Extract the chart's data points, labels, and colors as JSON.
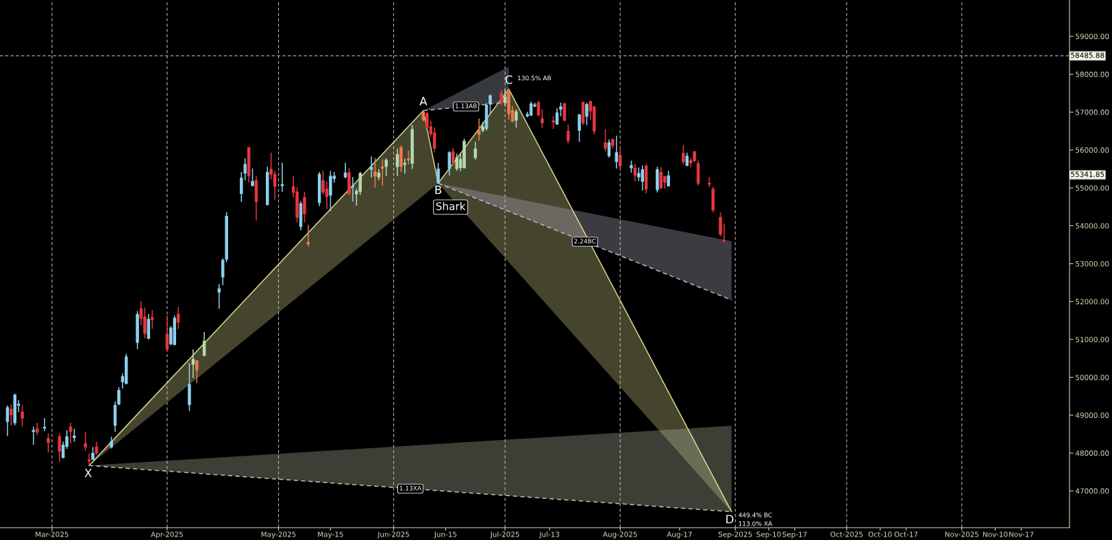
{
  "chart_data": {
    "type": "candlestick",
    "x": [
      "2025-02-17",
      "2025-02-18",
      "2025-02-19",
      "2025-02-20",
      "2025-02-21",
      "2025-02-24",
      "2025-02-25",
      "2025-02-27",
      "2025-02-28",
      "2025-03-03",
      "2025-03-04",
      "2025-03-05",
      "2025-03-06",
      "2025-03-07",
      "2025-03-10",
      "2025-03-11",
      "2025-03-12",
      "2025-03-13",
      "2025-03-17",
      "2025-03-18",
      "2025-03-19",
      "2025-03-20",
      "2025-03-21",
      "2025-03-24",
      "2025-03-25",
      "2025-03-26",
      "2025-03-27",
      "2025-03-28",
      "2025-04-01",
      "2025-04-02",
      "2025-04-03",
      "2025-04-04",
      "2025-04-07",
      "2025-04-08",
      "2025-04-09",
      "2025-04-11",
      "2025-04-15",
      "2025-04-16",
      "2025-04-17",
      "2025-04-21",
      "2025-04-22",
      "2025-04-23",
      "2025-04-24",
      "2025-04-25",
      "2025-04-28",
      "2025-04-29",
      "2025-04-30",
      "2025-05-02",
      "2025-05-05",
      "2025-05-06",
      "2025-05-07",
      "2025-05-08",
      "2025-05-09",
      "2025-05-12",
      "2025-05-13",
      "2025-05-14",
      "2025-05-15",
      "2025-05-16",
      "2025-05-19",
      "2025-05-20",
      "2025-05-21",
      "2025-05-22",
      "2025-05-23",
      "2025-05-26",
      "2025-05-27",
      "2025-05-28",
      "2025-05-29",
      "2025-05-30",
      "2025-06-02",
      "2025-06-03",
      "2025-06-04",
      "2025-06-05",
      "2025-06-06",
      "2025-06-09",
      "2025-06-10",
      "2025-06-11",
      "2025-06-12",
      "2025-06-13",
      "2025-06-16",
      "2025-06-17",
      "2025-06-18",
      "2025-06-19",
      "2025-06-20",
      "2025-06-23",
      "2025-06-24",
      "2025-06-25",
      "2025-06-26",
      "2025-06-27",
      "2025-06-30",
      "2025-07-01",
      "2025-07-02",
      "2025-07-03",
      "2025-07-04",
      "2025-07-07",
      "2025-07-08",
      "2025-07-09",
      "2025-07-10",
      "2025-07-11",
      "2025-07-14",
      "2025-07-15",
      "2025-07-16",
      "2025-07-17",
      "2025-07-18",
      "2025-07-21",
      "2025-07-22",
      "2025-07-23",
      "2025-07-24",
      "2025-07-25",
      "2025-07-28",
      "2025-07-29",
      "2025-07-30",
      "2025-07-31",
      "2025-08-01",
      "2025-08-04",
      "2025-08-05",
      "2025-08-06",
      "2025-08-07",
      "2025-08-08",
      "2025-08-11",
      "2025-08-12",
      "2025-08-13",
      "2025-08-14",
      "2025-08-18",
      "2025-08-19",
      "2025-08-20",
      "2025-08-21",
      "2025-08-22",
      "2025-08-25",
      "2025-08-26",
      "2025-08-28",
      "2025-08-29"
    ],
    "ohlc": [
      [
        48830,
        49260,
        48450,
        49200
      ],
      [
        49160,
        49280,
        48730,
        49010
      ],
      [
        48800,
        49570,
        48730,
        49530
      ],
      [
        49260,
        49400,
        49080,
        49290
      ],
      [
        49080,
        49260,
        48700,
        48920
      ],
      [
        48570,
        48700,
        48220,
        48600
      ],
      [
        48640,
        48800,
        48470,
        48550
      ],
      [
        48660,
        48920,
        48580,
        48680
      ],
      [
        48380,
        48520,
        48020,
        48280
      ],
      [
        48430,
        48520,
        47770,
        48050
      ],
      [
        47880,
        48300,
        47860,
        48210
      ],
      [
        48180,
        48600,
        48110,
        48430
      ],
      [
        48690,
        48800,
        48250,
        48570
      ],
      [
        48410,
        48640,
        48300,
        48450
      ],
      [
        48250,
        48550,
        48060,
        48160
      ],
      [
        47820,
        47990,
        47670,
        47790
      ],
      [
        47830,
        48160,
        47820,
        47990
      ],
      [
        48160,
        48290,
        47970,
        48000
      ],
      [
        48160,
        48430,
        48120,
        48300
      ],
      [
        48730,
        49360,
        48560,
        49260
      ],
      [
        49290,
        49740,
        49260,
        49650
      ],
      [
        49880,
        50100,
        49700,
        50020
      ],
      [
        49840,
        50620,
        49810,
        50540
      ],
      [
        50920,
        51750,
        50740,
        51660
      ],
      [
        51810,
        52010,
        51380,
        51560
      ],
      [
        51590,
        51840,
        51030,
        51160
      ],
      [
        51030,
        51670,
        51000,
        51530
      ],
      [
        51580,
        51780,
        51280,
        51520
      ],
      [
        51130,
        51630,
        50690,
        50750
      ],
      [
        50880,
        51350,
        50850,
        51300
      ],
      [
        50860,
        51630,
        50850,
        51560
      ],
      [
        51670,
        51860,
        51280,
        51460
      ],
      [
        49280,
        50380,
        49110,
        49810
      ],
      [
        50340,
        50740,
        49980,
        50470
      ],
      [
        50440,
        50440,
        49850,
        50190
      ],
      [
        50570,
        51190,
        50570,
        50950
      ],
      [
        52250,
        52460,
        51810,
        52340
      ],
      [
        52650,
        53140,
        52430,
        53090
      ],
      [
        53120,
        54360,
        53040,
        54250
      ],
      [
        54850,
        55420,
        54630,
        55260
      ],
      [
        55390,
        55780,
        55200,
        55620
      ],
      [
        56070,
        56070,
        55140,
        55320
      ],
      [
        55060,
        55510,
        55040,
        55170
      ],
      [
        55190,
        55310,
        54140,
        54640
      ],
      [
        54560,
        55560,
        54530,
        55410
      ],
      [
        55490,
        55930,
        55230,
        55360
      ],
      [
        55360,
        55450,
        54690,
        55040
      ],
      [
        55060,
        55670,
        54900,
        55090
      ],
      [
        55030,
        55320,
        54750,
        54880
      ],
      [
        54890,
        55010,
        54090,
        54220
      ],
      [
        53980,
        54650,
        53880,
        54580
      ],
      [
        54750,
        54900,
        54080,
        54320
      ],
      [
        53560,
        54020,
        53450,
        53520
      ],
      [
        54610,
        55420,
        54520,
        55360
      ],
      [
        55190,
        55450,
        54830,
        54890
      ],
      [
        54970,
        55170,
        54440,
        54770
      ],
      [
        54810,
        55450,
        54390,
        55310
      ],
      [
        55250,
        55420,
        55140,
        55310
      ],
      [
        55290,
        55670,
        55250,
        55390
      ],
      [
        55400,
        55520,
        54800,
        54840
      ],
      [
        55030,
        55290,
        54640,
        55050
      ],
      [
        54840,
        54980,
        54530,
        54910
      ],
      [
        54910,
        55420,
        54810,
        55380
      ],
      [
        55490,
        55830,
        55270,
        55540
      ],
      [
        55420,
        55790,
        55010,
        55310
      ],
      [
        55290,
        55490,
        55200,
        55390
      ],
      [
        55550,
        55750,
        55060,
        55520
      ],
      [
        55570,
        55780,
        55310,
        55730
      ],
      [
        55560,
        56040,
        55310,
        55880
      ],
      [
        56070,
        56120,
        55420,
        55570
      ],
      [
        55620,
        55770,
        55380,
        55650
      ],
      [
        55770,
        55980,
        55620,
        55740
      ],
      [
        55650,
        56660,
        55500,
        56540
      ],
      [
        57000,
        57040,
        56760,
        56800
      ],
      [
        56960,
        57000,
        56580,
        56600
      ],
      [
        56610,
        56770,
        56350,
        56430
      ],
      [
        56450,
        56590,
        55930,
        56050
      ],
      [
        55140,
        55660,
        55120,
        55500
      ],
      [
        55510,
        55970,
        55330,
        55930
      ],
      [
        55950,
        56050,
        55600,
        55670
      ],
      [
        55510,
        55900,
        55450,
        55800
      ],
      [
        55540,
        55910,
        55440,
        55750
      ],
      [
        55530,
        56300,
        55520,
        56230
      ],
      [
        55800,
        56210,
        55750,
        56030
      ],
      [
        56500,
        56830,
        56250,
        56410
      ],
      [
        56520,
        56740,
        56470,
        56610
      ],
      [
        56570,
        57240,
        56510,
        57180
      ],
      [
        57220,
        57470,
        56960,
        57430
      ],
      [
        57500,
        57590,
        57190,
        57260
      ],
      [
        57260,
        57610,
        57160,
        57400
      ],
      [
        57580,
        57610,
        56800,
        56960
      ],
      [
        57040,
        57160,
        56730,
        56760
      ],
      [
        56790,
        57070,
        56590,
        57010
      ],
      [
        56900,
        57010,
        56860,
        56940
      ],
      [
        56920,
        57280,
        56900,
        57220
      ],
      [
        57160,
        57250,
        57130,
        57190
      ],
      [
        57250,
        57300,
        56900,
        56920
      ],
      [
        56820,
        57070,
        56580,
        56720
      ],
      [
        56770,
        56890,
        56560,
        56740
      ],
      [
        56680,
        57100,
        56680,
        56980
      ],
      [
        57080,
        57250,
        56890,
        57140
      ],
      [
        57220,
        57250,
        56760,
        56780
      ],
      [
        56490,
        56670,
        56170,
        56250
      ],
      [
        56520,
        56950,
        56220,
        56930
      ],
      [
        57260,
        57280,
        56660,
        56720
      ],
      [
        56890,
        57250,
        56660,
        57200
      ],
      [
        57280,
        57300,
        56800,
        57030
      ],
      [
        57140,
        57160,
        56410,
        56500
      ],
      [
        56190,
        56550,
        55960,
        56050
      ],
      [
        55850,
        56280,
        55800,
        56190
      ],
      [
        56280,
        56300,
        56040,
        56120
      ],
      [
        55690,
        56380,
        55510,
        55930
      ],
      [
        55860,
        56080,
        55520,
        55580
      ],
      [
        55530,
        55720,
        55400,
        55590
      ],
      [
        55520,
        55630,
        55170,
        55330
      ],
      [
        55290,
        55540,
        55180,
        55380
      ],
      [
        55170,
        55590,
        54930,
        55480
      ],
      [
        55570,
        55630,
        54860,
        54970
      ],
      [
        54950,
        55560,
        54880,
        55480
      ],
      [
        55410,
        55540,
        54970,
        55000
      ],
      [
        55300,
        55300,
        54990,
        55150
      ],
      [
        55050,
        55450,
        55040,
        55320
      ],
      [
        55910,
        56130,
        55620,
        55690
      ],
      [
        55590,
        55930,
        55570,
        55840
      ],
      [
        55720,
        55790,
        55540,
        55660
      ],
      [
        55950,
        55980,
        55680,
        55720
      ],
      [
        55640,
        55720,
        55060,
        55120
      ],
      [
        55120,
        55280,
        55020,
        55100
      ],
      [
        54960,
        55030,
        54350,
        54420
      ],
      [
        54220,
        54350,
        53720,
        53780
      ],
      [
        53610,
        54060,
        53560,
        53600
      ]
    ],
    "colors": [
      "#8fd0ef",
      "#e8373f",
      "#8fd0ef",
      "#8fd0ef",
      "#e8373f",
      "#8fd0ef",
      "#e8373f",
      "#8fd0ef",
      "#e8373f",
      "#e8373f",
      "#8fd0ef",
      "#8fd0ef",
      "#e8373f",
      "#8fd0ef",
      "#e8373f",
      "#e8373f",
      "#8fd0ef",
      "#e8373f",
      "#8fd0ef",
      "#8fd0ef",
      "#8fd0ef",
      "#8fd0ef",
      "#8fd0ef",
      "#8fd0ef",
      "#e8373f",
      "#e8373f",
      "#8fd0ef",
      "#e8373f",
      "#e8373f",
      "#8fd0ef",
      "#8fd0ef",
      "#e8373f",
      "#8fd0ef",
      "#b4dcb0",
      "#f07a4a",
      "#b4dcb0",
      "#8fd0ef",
      "#8fd0ef",
      "#8fd0ef",
      "#8fd0ef",
      "#8fd0ef",
      "#e8373f",
      "#8fd0ef",
      "#e8373f",
      "#8fd0ef",
      "#e8373f",
      "#e8373f",
      "#8fd0ef",
      "#e8373f",
      "#e8373f",
      "#8fd0ef",
      "#e8373f",
      "#f07a4a",
      "#8fd0ef",
      "#e8373f",
      "#e8373f",
      "#8fd0ef",
      "#8fd0ef",
      "#8fd0ef",
      "#e8373f",
      "#8fd0ef",
      "#b4dcb0",
      "#b4dcb0",
      "#8fd0ef",
      "#f07a4a",
      "#b4dcb0",
      "#f07a4a",
      "#b4dcb0",
      "#b4dcb0",
      "#f07a4a",
      "#b4dcb0",
      "#f07a4a",
      "#b4dcb0",
      "#f07a4a",
      "#e8373f",
      "#e8373f",
      "#e8373f",
      "#8fd0ef",
      "#8fd0ef",
      "#e8373f",
      "#b4dcb0",
      "#b4dcb0",
      "#b4dcb0",
      "#b4dcb0",
      "#f07a4a",
      "#b4dcb0",
      "#8fd0ef",
      "#8fd0ef",
      "#e8373f",
      "#b4dcb0",
      "#f07a4a",
      "#f07a4a",
      "#b4dcb0",
      "#8fd0ef",
      "#8fd0ef",
      "#8fd0ef",
      "#e8373f",
      "#e8373f",
      "#e8373f",
      "#8fd0ef",
      "#8fd0ef",
      "#e8373f",
      "#e8373f",
      "#8fd0ef",
      "#e8373f",
      "#8fd0ef",
      "#e8373f",
      "#e8373f",
      "#e8373f",
      "#8fd0ef",
      "#e8373f",
      "#8fd0ef",
      "#e8373f",
      "#8fd0ef",
      "#e8373f",
      "#8fd0ef",
      "#8fd0ef",
      "#e8373f",
      "#8fd0ef",
      "#e8373f",
      "#e8373f",
      "#8fd0ef",
      "#e8373f",
      "#8fd0ef",
      "#e8373f",
      "#e8373f",
      "#e8373f",
      "#e8373f",
      "#e8373f",
      "#e8373f",
      "#e8373f"
    ],
    "series": [
      {
        "type": "line",
        "color": "#d8d890",
        "line_style": "solid",
        "x": [
          "2025-03-11",
          "2025-06-09",
          "2025-06-13"
        ],
        "values": [
          47670,
          57040,
          55120
        ],
        "lower": [
          47670,
          54800,
          55120
        ],
        "upper": [
          47670,
          57040,
          55120
        ]
      },
      {
        "type": "line",
        "color": "#d8d890",
        "line_style": "solid",
        "x": [
          "2025-06-13",
          "2025-07-02",
          "2025-08-31"
        ],
        "values": [
          55120,
          57610,
          46450
        ],
        "lower": [
          55120,
          53040,
          46450
        ],
        "upper": [
          55120,
          57610,
          46450
        ]
      },
      {
        "type": "line",
        "color": "#b8c4a8",
        "line_style": "dashed",
        "x": [
          "2025-03-11",
          "2025-08-31"
        ],
        "values": [
          47670,
          46450
        ],
        "lower": [
          47670,
          46450
        ],
        "upper": [
          47670,
          48720
        ]
      },
      {
        "type": "line",
        "color": "#a8b4c4",
        "line_style": "dashed",
        "x": [
          "2025-06-09",
          "2025-07-02"
        ],
        "values": [
          57040,
          57260
        ],
        "lower": [
          57040,
          57260
        ],
        "upper": [
          57040,
          58200
        ]
      },
      {
        "type": "line",
        "color": "#c0b4cc",
        "line_style": "dashed",
        "x": [
          "2025-06-13",
          "2025-08-31"
        ],
        "values": [
          55120,
          52040
        ],
        "lower": [
          55120,
          52040
        ],
        "upper": [
          55120,
          53590
        ]
      }
    ],
    "xlim": [
      "2025-02-15",
      "2025-11-30"
    ],
    "ylim": [
      46030,
      59960
    ],
    "xticks": [
      {
        "value": "2025-03-01",
        "label": "Mar-2025"
      },
      {
        "value": "2025-04-01",
        "label": "Apr-2025"
      },
      {
        "value": "2025-05-01",
        "label": "May-2025"
      },
      {
        "value": "2025-05-15",
        "label": "May-15"
      },
      {
        "value": "2025-06-01",
        "label": "Jun-2025"
      },
      {
        "value": "2025-06-15",
        "label": "Jun-15"
      },
      {
        "value": "2025-07-01",
        "label": "Jul-2025"
      },
      {
        "value": "2025-07-13",
        "label": "Jul-13"
      },
      {
        "value": "2025-08-01",
        "label": "Aug-2025"
      },
      {
        "value": "2025-08-17",
        "label": "Aug-17"
      },
      {
        "value": "2025-09-01",
        "label": "Sep-2025"
      },
      {
        "value": "2025-09-10",
        "label": "Sep-10"
      },
      {
        "value": "2025-09-17",
        "label": "Sep-17"
      },
      {
        "value": "2025-10-01",
        "label": "Oct-2025"
      },
      {
        "value": "2025-10-10",
        "label": "Oct-10"
      },
      {
        "value": "2025-10-17",
        "label": "Oct-17"
      },
      {
        "value": "2025-11-01",
        "label": "Nov-2025"
      },
      {
        "value": "2025-11-10",
        "label": "Nov-10"
      },
      {
        "value": "2025-11-17",
        "label": "Nov-17"
      }
    ],
    "yticks": [
      {
        "value": 47000,
        "label": "47000.00"
      },
      {
        "value": 48000,
        "label": "48000.00"
      },
      {
        "value": 49000,
        "label": "49000.00"
      },
      {
        "value": 50000,
        "label": "50000.00"
      },
      {
        "value": 51000,
        "label": "51000.00"
      },
      {
        "value": 52000,
        "label": "52000.00"
      },
      {
        "value": 53000,
        "label": "53000.00"
      },
      {
        "value": 54000,
        "label": "54000.00"
      },
      {
        "value": 55000,
        "label": "55000.00"
      },
      {
        "value": 56000,
        "label": "56000.00"
      },
      {
        "value": 57000,
        "label": "57000.00"
      },
      {
        "value": 58000,
        "label": "58000.00"
      },
      {
        "value": 59000,
        "label": "59000.00"
      }
    ],
    "ref_lines": [
      {
        "axis": "y",
        "value": 58485.88,
        "label": "58485.88",
        "color": "#c8c8c8",
        "line_style": "dashed"
      },
      {
        "axis": "x",
        "value": "2025-03-01",
        "color": "#b4b4b4",
        "line_style": "dashed"
      },
      {
        "axis": "x",
        "value": "2025-04-01",
        "color": "#b4b4b4",
        "line_style": "dashed"
      },
      {
        "axis": "x",
        "value": "2025-05-01",
        "color": "#b4b4b4",
        "line_style": "dashed"
      },
      {
        "axis": "x",
        "value": "2025-06-01",
        "color": "#b4b4b4",
        "line_style": "dashed"
      },
      {
        "axis": "x",
        "value": "2025-07-01",
        "color": "#b4b4b4",
        "line_style": "dashed"
      },
      {
        "axis": "x",
        "value": "2025-08-01",
        "color": "#b4b4b4",
        "line_style": "dashed"
      },
      {
        "axis": "x",
        "value": "2025-09-01",
        "color": "#b4b4b4",
        "line_style": "dashed"
      },
      {
        "axis": "x",
        "value": "2025-10-01",
        "color": "#b4b4b4",
        "line_style": "dashed"
      },
      {
        "axis": "x",
        "value": "2025-11-01",
        "color": "#b4b4b4",
        "line_style": "dashed"
      }
    ],
    "annotations": [
      "X",
      "A",
      "B",
      "Shark",
      "C",
      "130.5% AB",
      "1.13AB",
      "2.24BC",
      "1.13XA",
      "D",
      "449.4% BC",
      "113.0% XA",
      "55341.85"
    ]
  }
}
